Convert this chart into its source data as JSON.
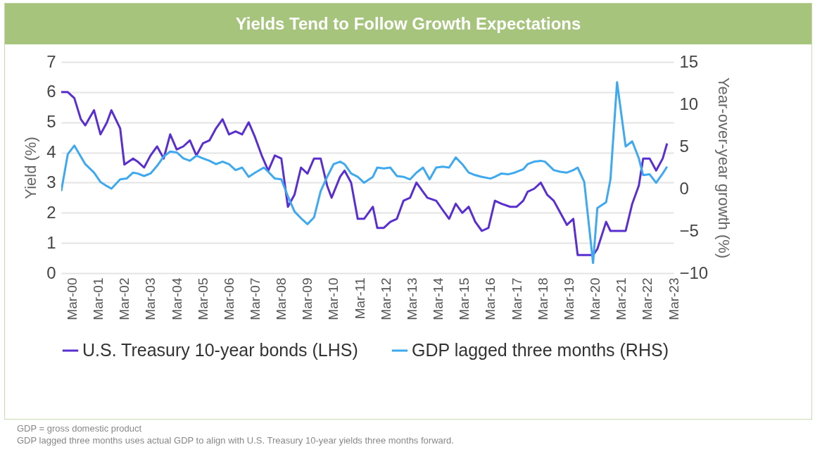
{
  "chart_data": {
    "type": "line",
    "title": "Yields Tend to Follow Growth Expectations",
    "ylabel": "Yield (%)",
    "y2label": "Year-over-year growth (%)",
    "annotations": [
      "GDP = gross domestic product",
      "GDP lagged three months uses actual GDP to align with U.S. Treasury 10-year yields three months forward."
    ],
    "xlim": [
      "1999-10",
      "2023-03"
    ],
    "xticks": [
      {
        "value": "2000-03",
        "label": "Mar-00"
      },
      {
        "value": "2001-03",
        "label": "Mar-01"
      },
      {
        "value": "2002-03",
        "label": "Mar-02"
      },
      {
        "value": "2003-03",
        "label": "Mar-03"
      },
      {
        "value": "2004-03",
        "label": "Mar-04"
      },
      {
        "value": "2005-03",
        "label": "Mar-05"
      },
      {
        "value": "2006-03",
        "label": "Mar-06"
      },
      {
        "value": "2007-03",
        "label": "Mar-07"
      },
      {
        "value": "2008-03",
        "label": "Mar-08"
      },
      {
        "value": "2009-03",
        "label": "Mar-09"
      },
      {
        "value": "2010-03",
        "label": "Mar-10"
      },
      {
        "value": "2011-03",
        "label": "Mar-11"
      },
      {
        "value": "2012-03",
        "label": "Mar-12"
      },
      {
        "value": "2013-03",
        "label": "Mar-13"
      },
      {
        "value": "2014-03",
        "label": "Mar-14"
      },
      {
        "value": "2015-03",
        "label": "Mar-15"
      },
      {
        "value": "2016-03",
        "label": "Mar-16"
      },
      {
        "value": "2017-03",
        "label": "Mar-17"
      },
      {
        "value": "2018-03",
        "label": "Mar-18"
      },
      {
        "value": "2019-03",
        "label": "Mar-19"
      },
      {
        "value": "2020-03",
        "label": "Mar-20"
      },
      {
        "value": "2021-03",
        "label": "Mar-21"
      },
      {
        "value": "2022-03",
        "label": "Mar-22"
      },
      {
        "value": "2023-03",
        "label": "Mar-23"
      }
    ],
    "ylim": [
      0,
      7
    ],
    "yticks": [
      0,
      1,
      2,
      3,
      4,
      5,
      6,
      7
    ],
    "y2lim": [
      -10,
      15
    ],
    "y2ticks": [
      -10,
      -5,
      0,
      5,
      10,
      15
    ],
    "grid": "y",
    "legend": "bottom",
    "line_style": "solid",
    "series": [
      {
        "name": "U.S. Treasury 10-year bonds (LHS)",
        "color": "#5a2fd0",
        "x": [
          "1999-10",
          "2000-01",
          "2000-04",
          "2000-07",
          "2000-09",
          "2001-01",
          "2001-04",
          "2001-07",
          "2001-09",
          "2002-01",
          "2002-03",
          "2002-07",
          "2002-09",
          "2002-12",
          "2003-03",
          "2003-06",
          "2003-09",
          "2003-12",
          "2004-03",
          "2004-06",
          "2004-09",
          "2004-12",
          "2005-03",
          "2005-06",
          "2005-09",
          "2005-12",
          "2006-03",
          "2006-06",
          "2006-09",
          "2006-12",
          "2007-03",
          "2007-06",
          "2007-09",
          "2007-12",
          "2008-03",
          "2008-06",
          "2008-09",
          "2008-12",
          "2009-03",
          "2009-06",
          "2009-09",
          "2009-12",
          "2010-02",
          "2010-06",
          "2010-08",
          "2010-11",
          "2011-02",
          "2011-05",
          "2011-09",
          "2011-11",
          "2012-02",
          "2012-05",
          "2012-08",
          "2012-11",
          "2013-02",
          "2013-05",
          "2013-08",
          "2013-10",
          "2014-02",
          "2014-05",
          "2014-08",
          "2014-11",
          "2015-02",
          "2015-05",
          "2015-08",
          "2015-11",
          "2016-02",
          "2016-05",
          "2016-08",
          "2016-12",
          "2017-03",
          "2017-06",
          "2017-08",
          "2017-11",
          "2018-02",
          "2018-05",
          "2018-08",
          "2018-11",
          "2019-02",
          "2019-05",
          "2019-07",
          "2019-10",
          "2020-02",
          "2020-04",
          "2020-08",
          "2020-10",
          "2021-01",
          "2021-05",
          "2021-08",
          "2021-11",
          "2022-01",
          "2022-04",
          "2022-07",
          "2022-10",
          "2022-12"
        ],
        "values": [
          6.0,
          6.0,
          5.8,
          5.1,
          4.9,
          5.4,
          4.6,
          5.0,
          5.4,
          4.8,
          3.6,
          3.8,
          3.7,
          3.5,
          3.9,
          4.2,
          3.8,
          4.6,
          4.1,
          4.2,
          4.4,
          3.9,
          4.3,
          4.4,
          4.8,
          5.1,
          4.6,
          4.7,
          4.6,
          5.0,
          4.5,
          3.9,
          3.4,
          3.9,
          3.8,
          2.2,
          2.6,
          3.5,
          3.3,
          3.8,
          3.8,
          2.9,
          2.5,
          3.2,
          3.4,
          3.0,
          1.8,
          1.8,
          2.2,
          1.5,
          1.5,
          1.7,
          1.8,
          2.4,
          2.5,
          3.0,
          2.7,
          2.5,
          2.4,
          2.1,
          1.8,
          2.3,
          2.0,
          2.2,
          1.7,
          1.4,
          1.5,
          2.4,
          2.3,
          2.2,
          2.2,
          2.4,
          2.7,
          2.8,
          3.0,
          2.6,
          2.4,
          2.0,
          1.6,
          1.8,
          0.6,
          0.6,
          0.6,
          0.8,
          1.7,
          1.4,
          1.4,
          1.4,
          2.3,
          2.9,
          3.8,
          3.8,
          3.4,
          3.8,
          4.3
        ]
      },
      {
        "name": "GDP lagged three months (RHS)",
        "color": "#3fa9ef",
        "axis": "y2",
        "x": [
          "1999-10",
          "2000-01",
          "2000-04",
          "2000-07",
          "2000-09",
          "2001-01",
          "2001-04",
          "2001-07",
          "2001-09",
          "2002-01",
          "2002-04",
          "2002-07",
          "2002-09",
          "2002-12",
          "2003-03",
          "2003-06",
          "2003-09",
          "2003-12",
          "2004-03",
          "2004-06",
          "2004-09",
          "2004-12",
          "2005-03",
          "2005-06",
          "2005-09",
          "2005-12",
          "2006-03",
          "2006-06",
          "2006-09",
          "2006-12",
          "2007-03",
          "2007-07",
          "2007-09",
          "2007-12",
          "2008-03",
          "2008-06",
          "2008-09",
          "2008-12",
          "2009-03",
          "2009-06",
          "2009-09",
          "2009-12",
          "2010-03",
          "2010-06",
          "2010-08",
          "2010-11",
          "2011-02",
          "2011-05",
          "2011-09",
          "2011-11",
          "2012-02",
          "2012-05",
          "2012-08",
          "2012-11",
          "2013-02",
          "2013-05",
          "2013-08",
          "2013-11",
          "2014-02",
          "2014-05",
          "2014-08",
          "2014-11",
          "2015-02",
          "2015-05",
          "2015-08",
          "2015-11",
          "2016-03",
          "2016-05",
          "2016-08",
          "2016-11",
          "2017-02",
          "2017-06",
          "2017-08",
          "2017-11",
          "2018-02",
          "2018-04",
          "2018-08",
          "2018-11",
          "2019-02",
          "2019-05",
          "2019-07",
          "2019-10",
          "2020-02",
          "2020-04",
          "2020-08",
          "2020-10",
          "2021-01",
          "2021-05",
          "2021-08",
          "2021-11",
          "2022-01",
          "2022-04",
          "2022-07",
          "2022-10",
          "2022-12"
        ],
        "values": [
          -0.3,
          4.1,
          5.1,
          3.8,
          2.9,
          1.9,
          0.8,
          0.3,
          0.0,
          1.1,
          1.2,
          1.9,
          1.8,
          1.5,
          1.8,
          2.7,
          3.8,
          4.4,
          4.3,
          3.6,
          3.3,
          3.9,
          3.6,
          3.3,
          2.9,
          3.2,
          2.9,
          2.2,
          2.5,
          1.4,
          1.9,
          2.5,
          2.0,
          1.2,
          1.1,
          -0.9,
          -2.7,
          -3.5,
          -4.2,
          -3.4,
          -0.3,
          1.4,
          2.9,
          3.2,
          2.9,
          1.8,
          1.4,
          0.7,
          1.4,
          2.5,
          2.4,
          2.5,
          1.5,
          1.4,
          1.1,
          1.9,
          2.5,
          1.1,
          2.5,
          2.6,
          2.5,
          3.7,
          2.9,
          1.9,
          1.6,
          1.4,
          1.2,
          1.4,
          1.8,
          1.7,
          1.9,
          2.3,
          2.9,
          3.2,
          3.3,
          3.2,
          2.2,
          2.0,
          1.9,
          2.2,
          2.5,
          0.8,
          -8.8,
          -2.3,
          -1.6,
          1.1,
          12.6,
          5.0,
          5.6,
          3.6,
          1.6,
          1.7,
          0.7,
          1.8,
          2.6
        ]
      }
    ]
  }
}
